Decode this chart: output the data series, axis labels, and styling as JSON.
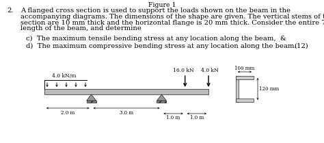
{
  "title_text": "Figure 1",
  "problem_number": "2.",
  "main_text_line1": "A flanged cross section is used to support the loads shown on the beam in the",
  "main_text_line2": "accompanying diagrams. The dimensions of the shape are given. The vertical stems of the",
  "main_text_line3": "section are 10 mm thick and the horizontal flange is 20 mm thick. Consider the entire 7 m",
  "main_text_line4": "length of the beam, and determine",
  "item_c": "c)  The maximum tensile bending stress at any location along the beam,  &",
  "item_d": "d)  The maximum compressive bending stress at any location along the beam.",
  "marks": "(12)",
  "background_color": "#ffffff",
  "text_color": "#000000",
  "load_label_udl": "4.0 kN/m",
  "load_label_p1": "16.0 kN",
  "load_label_p2": "4.0 kN",
  "cross_section_dim1": "100 mm",
  "cross_section_dim2": "120 mm",
  "font_size_main": 7.2,
  "font_size_diagram": 5.5
}
